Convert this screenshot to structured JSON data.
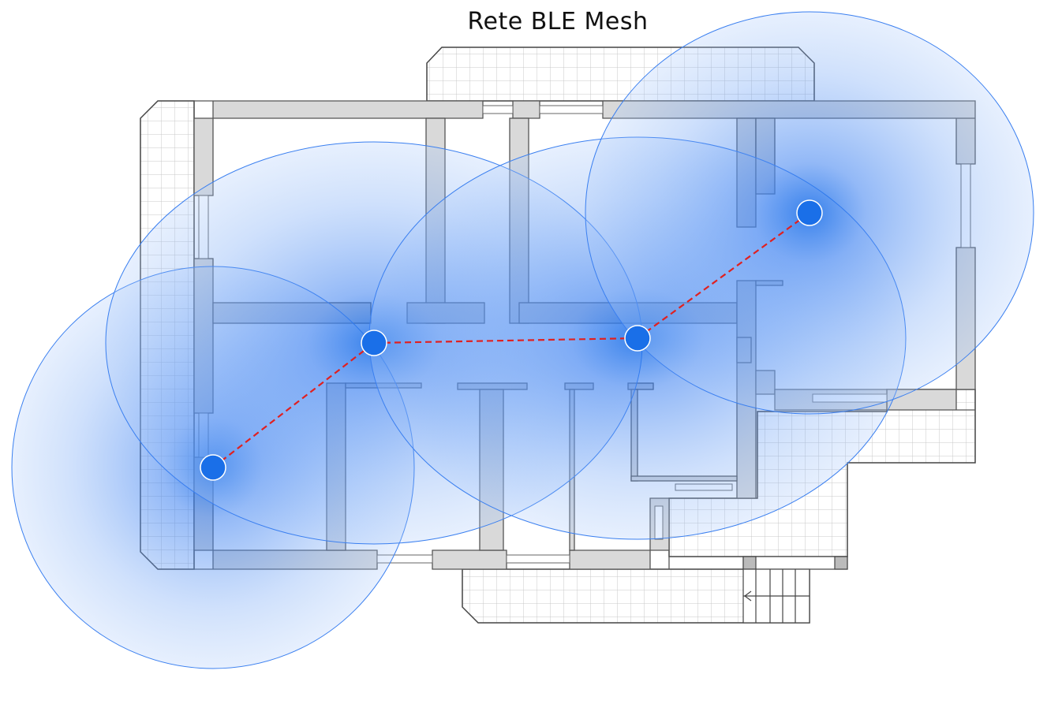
{
  "title": "Rete BLE Mesh",
  "colors": {
    "coverage": "#3a7ff0",
    "node": "#1a6fe8",
    "link": "#e02020",
    "wall": "#d9d9d9",
    "wall_stroke": "#555555",
    "terrace_grid": "#c8c8c8"
  },
  "nodes": [
    {
      "id": "node-1"
    },
    {
      "id": "node-2"
    },
    {
      "id": "node-3"
    },
    {
      "id": "node-4"
    }
  ],
  "links": [
    {
      "from": "node-1",
      "to": "node-2"
    },
    {
      "from": "node-2",
      "to": "node-3"
    },
    {
      "from": "node-3",
      "to": "node-4"
    }
  ]
}
